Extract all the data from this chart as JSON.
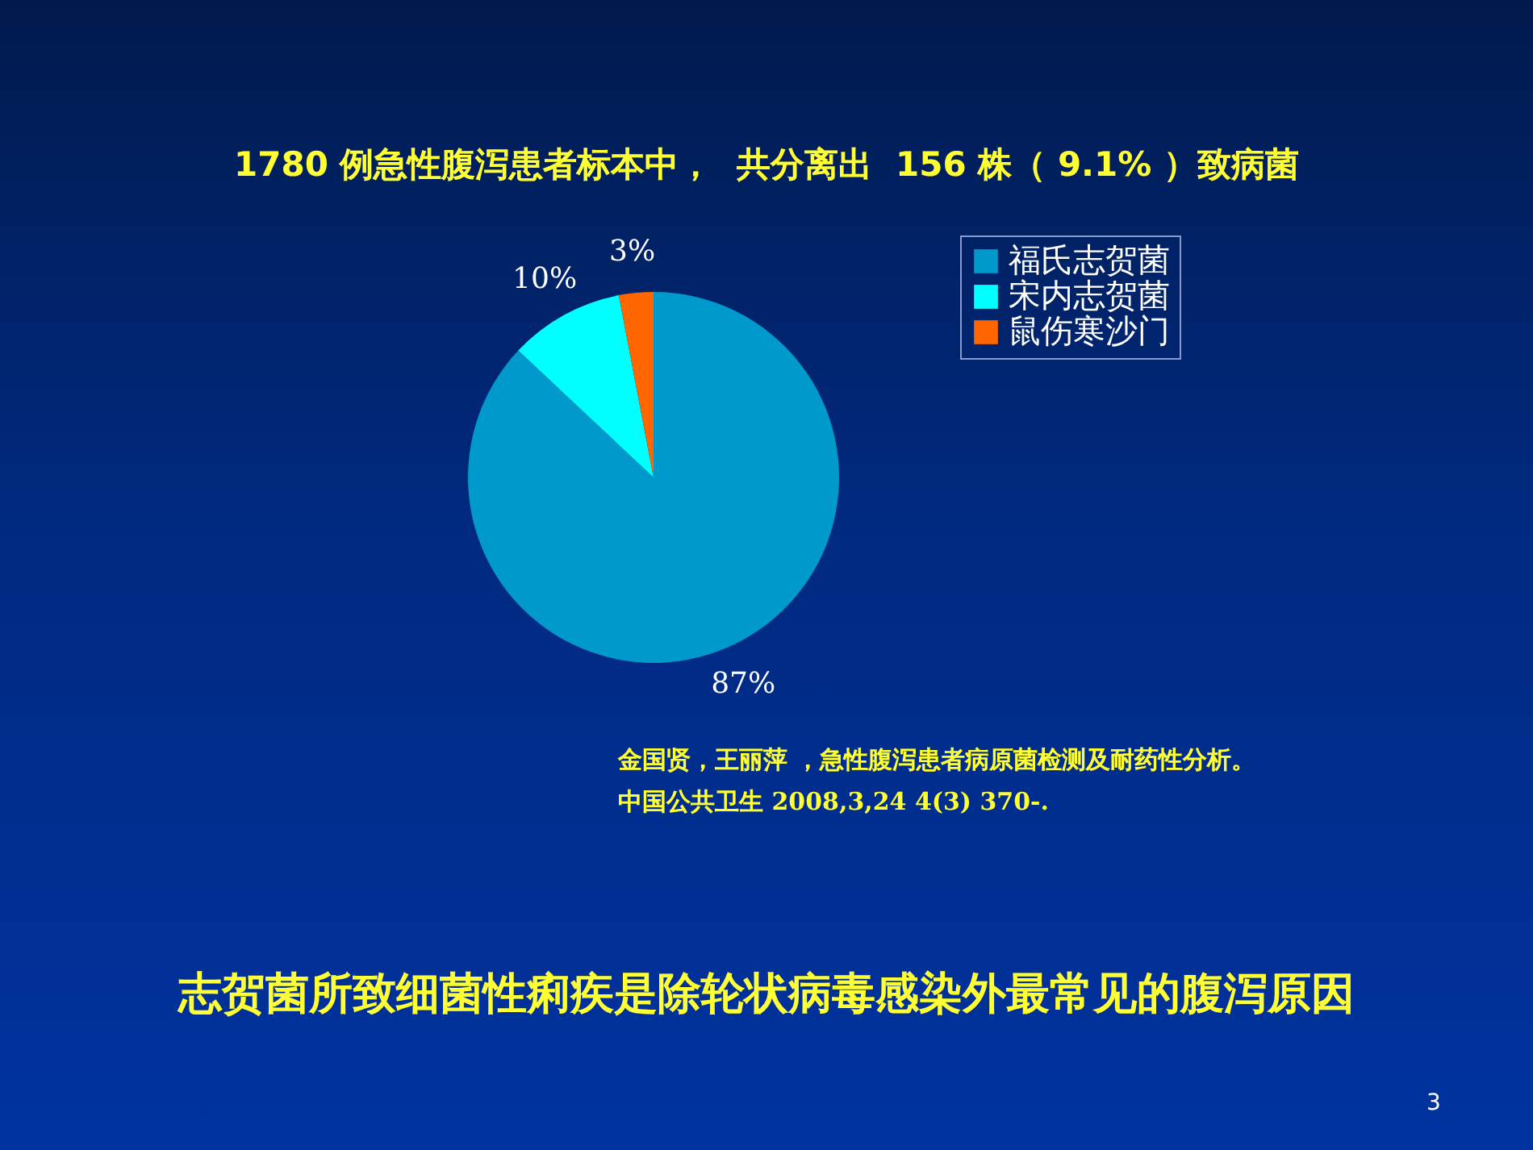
{
  "chart_data": {
    "type": "pie",
    "title": "1780 例急性腹泻患者标本中，  共分离出  156 株（ 9.1% ）致病菌",
    "categories": [
      "福氏志贺菌",
      "宋内志贺菌",
      "鼠伤寒沙门"
    ],
    "values": [
      87,
      10,
      3
    ],
    "value_labels": [
      "87%",
      "10%",
      "3%"
    ],
    "colors": [
      "#0099cc",
      "#00ffff",
      "#ff6600"
    ],
    "legend": "right",
    "annotations": [
      "金国贤，王丽萍 ，急性腹泻患者病原菌检测及耐药性分析。",
      "中国公共卫生 2008,3,24 4(3) 370-.",
      "志贺菌所致细菌性痢疾是除轮状病毒感染外最常见的腹泻原因",
      "3"
    ]
  }
}
